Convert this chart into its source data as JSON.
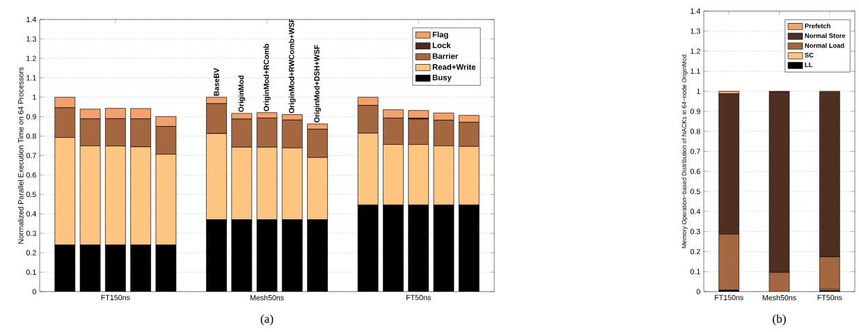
{
  "chart_data": [
    {
      "type": "bar",
      "stacked": true,
      "ylabel": "Normalized Parallel Execution Time on 64 Processors",
      "categories": [
        null,
        null,
        "FT150ns",
        null,
        null,
        null,
        null,
        null,
        "Mesh50ns",
        null,
        null,
        null,
        null,
        null,
        "FT50ns",
        null,
        null
      ],
      "series": [
        {
          "name": "Busy",
          "color": "#000000",
          "values": [
            0.24,
            0.24,
            0.24,
            0.24,
            0.24,
            null,
            0.37,
            0.37,
            0.37,
            0.37,
            0.37,
            null,
            0.446,
            0.446,
            0.446,
            0.446,
            0.446
          ]
        },
        {
          "name": "Read+Write",
          "color": "#fdc580",
          "values": [
            0.553,
            0.51,
            0.509,
            0.505,
            0.467,
            null,
            0.443,
            0.373,
            0.373,
            0.369,
            0.32,
            null,
            0.369,
            0.311,
            0.311,
            0.304,
            0.301
          ]
        },
        {
          "name": "Barrier",
          "color": "#a5673f",
          "values": [
            0.153,
            0.139,
            0.141,
            0.144,
            0.143,
            null,
            0.154,
            0.145,
            0.15,
            0.144,
            0.146,
            null,
            0.143,
            0.136,
            0.131,
            0.132,
            0.124
          ]
        },
        {
          "name": "Lock",
          "color": "#4a2c1e",
          "values": [
            0,
            0,
            0,
            0,
            0,
            null,
            0,
            0,
            0,
            0,
            0,
            null,
            0,
            0,
            0.004,
            0,
            0
          ]
        },
        {
          "name": "Flag",
          "color": "#f4a06a",
          "values": [
            0.054,
            0.05,
            0.053,
            0.053,
            0.051,
            null,
            0.033,
            0.029,
            0.028,
            0.028,
            0.027,
            null,
            0.042,
            0.043,
            0.04,
            0.037,
            0.036
          ]
        }
      ],
      "ylim": [
        0,
        1.4
      ],
      "yticks": [
        0,
        0.1,
        0.2,
        0.3,
        0.4,
        0.5,
        0.6,
        0.7,
        0.8,
        0.9,
        1,
        1.1,
        1.2,
        1.3,
        1.4
      ],
      "grid": "y",
      "legend": "top right",
      "annotations": [
        {
          "text": "BaseBV",
          "y": 1.0
        },
        {
          "text": "OriginMod",
          "y": 0.917
        },
        {
          "text": "OriginMod+RComb",
          "y": 0.921
        },
        {
          "text": "OriginMod+RWComb+WSF",
          "y": 0.911
        },
        {
          "text": "OriginMod+DSH+WSF",
          "y": 0.863
        },
        "(a)"
      ]
    },
    {
      "type": "bar",
      "stacked": true,
      "ylabel": "Memory Operation−based Distribution of NACKs in 64−node OriginMod",
      "categories": [
        "FT150ns",
        null,
        "Mesh50ns",
        null,
        "FT50ns"
      ],
      "series": [
        {
          "name": "LL",
          "color": "#000000",
          "values": [
            0.008,
            null,
            0,
            null,
            0.006
          ]
        },
        {
          "name": "SC",
          "color": "#fdc580",
          "values": [
            0,
            null,
            0,
            null,
            0.006
          ]
        },
        {
          "name": "Normal Load",
          "color": "#a5673f",
          "values": [
            0.279,
            null,
            0.096,
            null,
            0.162
          ]
        },
        {
          "name": "Normal Store",
          "color": "#4f3020",
          "values": [
            0.7,
            null,
            0.901,
            null,
            0.826
          ]
        },
        {
          "name": "Prefetch",
          "color": "#f4a06a",
          "values": [
            0.013,
            null,
            0.003,
            null,
            0
          ]
        }
      ],
      "ylim": [
        0,
        1.4
      ],
      "yticks": [
        0,
        0.1,
        0.2,
        0.3,
        0.4,
        0.5,
        0.6,
        0.7,
        0.8,
        0.9,
        1,
        1.1,
        1.2,
        1.3,
        1.4
      ],
      "grid": "y",
      "legend": "top right",
      "annotations": [
        "(b)"
      ]
    }
  ]
}
